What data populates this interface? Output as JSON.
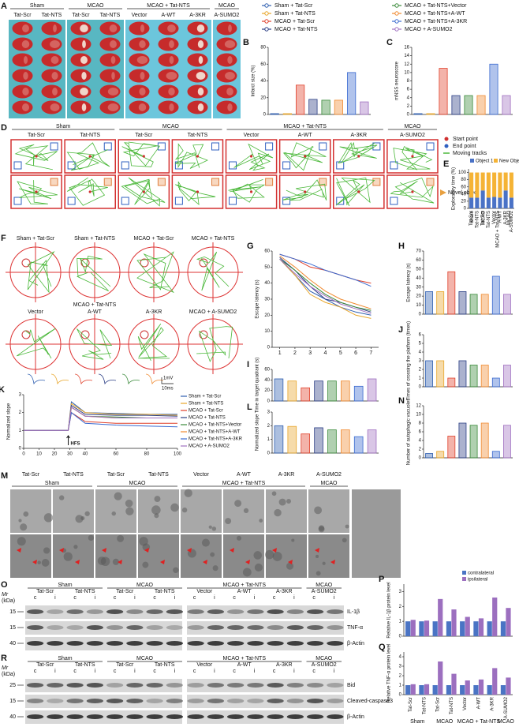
{
  "group_legend": {
    "names": [
      "Sham + Tat-Scr",
      "Sham + Tat-NTS",
      "MCAO + Tat-Scr",
      "MCAO + Tat-NTS",
      "MCAO + Tat-NTS+Vector",
      "MCAO + Tat-NTS+A-WT",
      "MCAO + Tat-NTS+A-3KR",
      "MCAO + A-SUMO2"
    ],
    "colors": [
      "#2f5fb0",
      "#e8a62a",
      "#e0402a",
      "#2c3f85",
      "#3a8a3a",
      "#f08a30",
      "#3a6ad0",
      "#a070c0"
    ]
  },
  "panel_A": {
    "letter": "A",
    "groups": [
      "Sham",
      "MCAO",
      "MCAO + Tat-NTS",
      "MCAO"
    ],
    "lanes": [
      "Tat-Scr",
      "Tat-NTS",
      "Tat-Scr",
      "Tat-NTS",
      "Vector",
      "A-WT",
      "A-3KR",
      "A-SUMO2"
    ]
  },
  "panel_D": {
    "letter": "D",
    "groups": [
      "Sham",
      "MCAO",
      "MCAO + Tat-NTS",
      "MCAO"
    ],
    "lanes": [
      "Tat-Scr",
      "Tat-NTS",
      "Tat-Scr",
      "Tat-NTS",
      "Vector",
      "A-WT",
      "A-3KR",
      "A-SUMO2"
    ],
    "legend": [
      "Start point",
      "End point",
      "Moving tracks"
    ],
    "annotation": "Novel object"
  },
  "panel_F": {
    "letter": "F",
    "top_labels": [
      "Sham + Tat-Scr",
      "Sham + Tat-NTS",
      "MCAO + Tat-Scr",
      "MCAO + Tat-NTS"
    ],
    "group": "MCAO + Tat-NTS",
    "bottom_labels": [
      "Vector",
      "A-WT",
      "A-3KR",
      "MCAO + A-SUMO2"
    ]
  },
  "panel_M": {
    "letter": "M",
    "groups": [
      "Sham",
      "MCAO",
      "MCAO + Tat-NTS",
      "MCAO"
    ],
    "lanes": [
      "Tat-Scr",
      "Tat-NTS",
      "Tat-Scr",
      "Tat-NTS",
      "Vector",
      "A-WT",
      "A-3KR",
      "A-SUMO2"
    ]
  },
  "panel_O": {
    "letter": "O",
    "mr": "Mr",
    "unit": "(kDa)",
    "markers": [
      15,
      15,
      40
    ],
    "groups": [
      "Sham",
      "MCAO",
      "MCAO + Tat-NTS",
      "MCAO"
    ],
    "lanes": [
      "Tat-Scr",
      "Tat-NTS",
      "Tat-Scr",
      "Tat-NTS",
      "Vector",
      "A-WT",
      "A-3KR",
      "A-SUMO2"
    ],
    "sides": [
      "c",
      "i"
    ],
    "proteins": [
      "IL-1β",
      "TNF-α",
      "β-Actin"
    ]
  },
  "panel_R": {
    "letter": "R",
    "mr": "Mr",
    "unit": "(kDa)",
    "markers": [
      25,
      15,
      40
    ],
    "groups": [
      "Sham",
      "MCAO",
      "MCAO + Tat-NTS",
      "MCAO"
    ],
    "lanes": [
      "Tat-Scr",
      "Tat-NTS",
      "Tat-Scr",
      "Tat-NTS",
      "Vector",
      "A-WT",
      "A-3KR",
      "A-SUMO2"
    ],
    "sides": [
      "c",
      "i"
    ],
    "proteins": [
      "Bid",
      "Cleaved-caspase3",
      "β-Actin"
    ]
  },
  "chart_data": [
    {
      "panel": "B",
      "type": "bar",
      "ylabel": "Infarct size (%)",
      "values": [
        1,
        1,
        35,
        18,
        17,
        17,
        50,
        15
      ],
      "ylim": [
        0,
        80
      ],
      "yticks": [
        0,
        20,
        40,
        60,
        80
      ]
    },
    {
      "panel": "C",
      "type": "bar",
      "ylabel": "mNSS neuroscore",
      "values": [
        0.2,
        0.2,
        11,
        4.5,
        4.5,
        4.5,
        12,
        4.5
      ],
      "ylim": [
        0,
        16
      ],
      "yticks": [
        0,
        2,
        4,
        6,
        8,
        10,
        12,
        14,
        16
      ]
    },
    {
      "panel": "E",
      "type": "stacked_bar",
      "ylabel": "Exploratory time (%)",
      "categories": [
        "Tat-Scr",
        "Tat-NTS",
        "Tat-Scr",
        "Tat-NTS",
        "Vector",
        "A-WT",
        "A-3KR",
        "A-SUMO2"
      ],
      "groups": [
        "Sham",
        "MCAO",
        "MCAO + Tat-NTS",
        "MCAO"
      ],
      "series": [
        {
          "name": "Object 1",
          "color": "#4a72c6",
          "values": [
            30,
            30,
            50,
            30,
            32,
            30,
            50,
            30
          ]
        },
        {
          "name": "New Object",
          "color": "#f5b335",
          "values": [
            70,
            70,
            50,
            70,
            68,
            70,
            50,
            70
          ]
        }
      ],
      "ylim": [
        0,
        110
      ],
      "yticks": [
        0,
        20,
        40,
        60,
        80,
        100
      ]
    },
    {
      "panel": "G",
      "type": "line",
      "ylabel": "Escape latency (s)",
      "x": [
        1,
        2,
        3,
        4,
        5,
        6,
        7
      ],
      "xlim": [
        0.5,
        7.5
      ],
      "xticks": [
        1,
        2,
        3,
        4,
        5,
        6,
        7
      ],
      "series": [
        {
          "values": [
            55,
            45,
            35,
            30,
            25,
            22,
            20
          ]
        },
        {
          "values": [
            55,
            45,
            33,
            28,
            25,
            20,
            18
          ]
        },
        {
          "values": [
            58,
            55,
            50,
            48,
            45,
            42,
            40
          ]
        },
        {
          "values": [
            56,
            48,
            38,
            30,
            28,
            25,
            22
          ]
        },
        {
          "values": [
            55,
            48,
            40,
            33,
            28,
            25,
            23
          ]
        },
        {
          "values": [
            57,
            50,
            42,
            35,
            30,
            27,
            24
          ]
        },
        {
          "values": [
            58,
            55,
            52,
            48,
            45,
            42,
            38
          ]
        },
        {
          "values": [
            55,
            46,
            38,
            32,
            27,
            24,
            21
          ]
        }
      ],
      "ylim": [
        0,
        60
      ],
      "yticks": [
        0,
        10,
        20,
        30,
        40,
        50,
        60
      ]
    },
    {
      "panel": "H",
      "type": "bar",
      "ylabel": "Escape latency (s)",
      "values": [
        25,
        25,
        47,
        25,
        22,
        22,
        42,
        22
      ],
      "ylim": [
        0,
        70
      ],
      "yticks": [
        0,
        10,
        20,
        30,
        40,
        50,
        60,
        70
      ]
    },
    {
      "panel": "I",
      "type": "bar",
      "ylabel": "Time in target quadrant (s)",
      "values": [
        42,
        38,
        25,
        38,
        38,
        38,
        28,
        42
      ],
      "ylim": [
        0,
        60
      ],
      "yticks": [
        0,
        20,
        40,
        60
      ]
    },
    {
      "panel": "J",
      "type": "bar",
      "ylabel": "Times of crossing the platform (times)",
      "values": [
        3,
        3,
        1,
        3,
        2.5,
        2.5,
        1,
        2.5
      ],
      "ylim": [
        0,
        6
      ],
      "yticks": [
        0,
        1,
        2,
        3,
        4,
        5,
        6
      ]
    },
    {
      "panel": "K",
      "type": "line",
      "ylabel": "Normalized slope",
      "x": [
        0,
        10,
        20,
        29,
        31,
        40,
        60,
        80,
        100
      ],
      "xlim": [
        0,
        100
      ],
      "xticks": [
        0,
        10,
        20,
        30,
        40,
        60,
        80,
        100
      ],
      "annotation": "HFS",
      "scale": [
        "1mV",
        "10ms"
      ],
      "series": [
        {
          "values": [
            1,
            1,
            1,
            1,
            2.6,
            2.0,
            1.95,
            1.9,
            1.9
          ]
        },
        {
          "values": [
            1,
            1,
            1,
            1,
            2.5,
            2.0,
            1.9,
            1.9,
            1.85
          ]
        },
        {
          "values": [
            1,
            1,
            1,
            1,
            2.0,
            1.5,
            1.4,
            1.4,
            1.4
          ]
        },
        {
          "values": [
            1,
            1,
            1,
            1,
            2.4,
            1.9,
            1.85,
            1.85,
            1.8
          ]
        },
        {
          "values": [
            1,
            1,
            1,
            1,
            2.3,
            1.8,
            1.75,
            1.7,
            1.7
          ]
        },
        {
          "values": [
            1,
            1,
            1,
            1,
            2.3,
            1.8,
            1.7,
            1.7,
            1.7
          ]
        },
        {
          "values": [
            1,
            1,
            1,
            1,
            2.0,
            1.4,
            1.3,
            1.25,
            1.2
          ]
        },
        {
          "values": [
            1,
            1,
            1,
            1,
            2.3,
            1.8,
            1.7,
            1.7,
            1.7
          ]
        }
      ],
      "ylim": [
        0,
        3
      ],
      "yticks": [
        0,
        1,
        2,
        3
      ]
    },
    {
      "panel": "L",
      "type": "bar",
      "ylabel": "Normalized slope",
      "values": [
        2.0,
        1.95,
        1.4,
        1.85,
        1.7,
        1.7,
        1.2,
        1.7
      ],
      "ylim": [
        0,
        3
      ],
      "yticks": [
        0,
        1,
        2,
        3
      ]
    },
    {
      "panel": "N",
      "type": "bar",
      "ylabel": "Number of autophagic vacuoles",
      "values": [
        1,
        1.5,
        5,
        8,
        7.5,
        8,
        1.5,
        7.5
      ],
      "ylim": [
        0,
        12
      ],
      "yticks": [
        0,
        2,
        4,
        6,
        8,
        10,
        12
      ]
    },
    {
      "panel": "P",
      "type": "grouped_bar",
      "ylabel": "Relative IL-1β protein level",
      "series": [
        {
          "name": "contralateral",
          "color": "#4a74c4",
          "values": [
            1,
            1,
            1,
            1,
            1,
            1,
            1,
            1
          ]
        },
        {
          "name": "ipsilateral",
          "color": "#9c6fbf",
          "values": [
            1.1,
            1.05,
            2.5,
            1.8,
            1.3,
            1.2,
            2.6,
            1.9
          ]
        }
      ],
      "ylim": [
        0,
        3.5
      ],
      "yticks": [
        0,
        1,
        2,
        3
      ]
    },
    {
      "panel": "Q",
      "type": "grouped_bar",
      "ylabel": "Relative TNF-α protein level",
      "categories": [
        "Tat-Scr",
        "Tat-NTS",
        "Tat-Scr",
        "Tat-NTS",
        "Vector",
        "A-WT",
        "A-3KR",
        "A-SUMO2"
      ],
      "groups": [
        "Sham",
        "MCAO",
        "MCAO + Tat-NTS",
        "MCAO"
      ],
      "series": [
        {
          "values": [
            1,
            1,
            1,
            1,
            1,
            1,
            1,
            1
          ]
        },
        {
          "values": [
            1.1,
            1.1,
            3.5,
            2.2,
            1.5,
            1.6,
            2.8,
            1.8
          ]
        }
      ],
      "ylim": [
        0,
        4.5
      ],
      "yticks": [
        0,
        1,
        2,
        3,
        4
      ]
    }
  ]
}
